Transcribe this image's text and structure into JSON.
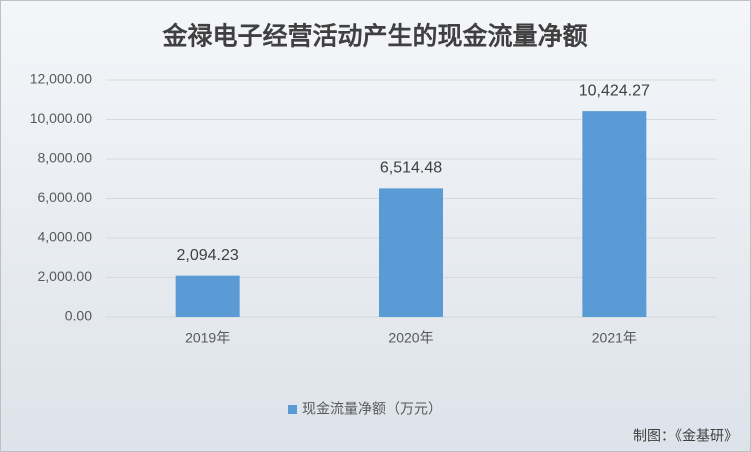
{
  "chart_data": {
    "type": "bar",
    "title": "金禄电子经营活动产生的现金流量净额",
    "categories": [
      "2019年",
      "2020年",
      "2021年"
    ],
    "series": [
      {
        "name": "现金流量净额（万元）",
        "color": "#5b9bd5",
        "values": [
          2094.23,
          6514.48,
          10424.27
        ],
        "value_labels": [
          "2,094.23",
          "6,514.48",
          "10,424.27"
        ]
      }
    ],
    "ylim": [
      0,
      12000
    ],
    "yticks": [
      {
        "value": 0,
        "label": "0.00"
      },
      {
        "value": 2000,
        "label": "2,000.00"
      },
      {
        "value": 4000,
        "label": "4,000.00"
      },
      {
        "value": 6000,
        "label": "6,000.00"
      },
      {
        "value": 8000,
        "label": "8,000.00"
      },
      {
        "value": 10000,
        "label": "10,000.00"
      },
      {
        "value": 12000,
        "label": "12,000.00"
      }
    ],
    "grid": true,
    "legend": "bottom",
    "source": "制图：《金基研》"
  }
}
